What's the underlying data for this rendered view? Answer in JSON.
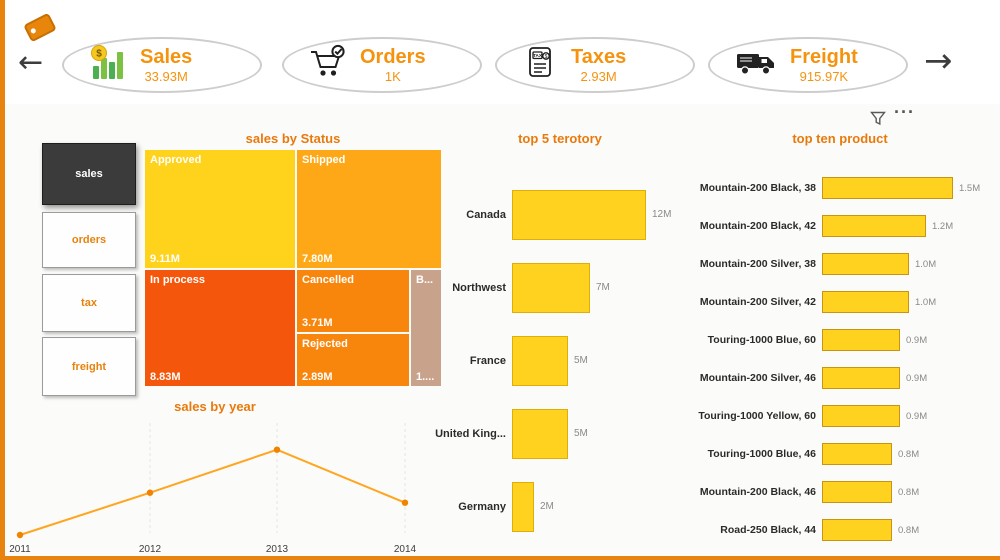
{
  "nav": {
    "back_arrow": "←",
    "forward_arrow": "→",
    "more_options": "···"
  },
  "colors": {
    "accent_orange": "#E8820C",
    "kpi_text": "#F5930F",
    "gold_bar": "#FFD21F",
    "line": "#FFA51F",
    "marker": "#F08300",
    "selected_button_bg": "#3B3B3B",
    "edge_strip": "#E8830F"
  },
  "kpis": [
    {
      "label": "Sales",
      "value": "33.93M",
      "icon": "bar-chart-dollar-icon"
    },
    {
      "label": "Orders",
      "value": "1K",
      "icon": "shopping-cart-icon"
    },
    {
      "label": "Taxes",
      "value": "2.93M",
      "icon": "tax-document-icon"
    },
    {
      "label": "Freight",
      "value": "915.97K",
      "icon": "delivery-truck-icon"
    }
  ],
  "sidebar": {
    "items": [
      {
        "label": "sales",
        "selected": true
      },
      {
        "label": "orders",
        "selected": false
      },
      {
        "label": "tax",
        "selected": false
      },
      {
        "label": "freight",
        "selected": false
      }
    ]
  },
  "chart_data": [
    {
      "type": "treemap",
      "title": "sales by Status",
      "items": [
        {
          "label": "Approved",
          "value_label": "9.11M",
          "value_millions": 9.11,
          "color": "#FFD21C"
        },
        {
          "label": "Shipped",
          "value_label": "7.80M",
          "value_millions": 7.8,
          "color": "#FFA817"
        },
        {
          "label": "In process",
          "value_label": "8.83M",
          "value_millions": 8.83,
          "color": "#F4570B"
        },
        {
          "label": "Cancelled",
          "value_label": "3.71M",
          "value_millions": 3.71,
          "color": "#F8860D"
        },
        {
          "label": "Rejected",
          "value_label": "2.89M",
          "value_millions": 2.89,
          "color": "#F8860D"
        },
        {
          "label": "B...",
          "value_label": "1....",
          "value_millions": 1.0,
          "color": "#C9A28B"
        }
      ]
    },
    {
      "type": "line",
      "title": "sales by year",
      "x": [
        "2011",
        "2012",
        "2013",
        "2014"
      ],
      "values_millions_estimated": [
        1.7,
        8.9,
        16.2,
        7.2
      ],
      "line_color": "#FFA51F",
      "marker_color": "#F08300",
      "grid": "vertical-dashed",
      "legend": "none"
    },
    {
      "type": "bar",
      "orientation": "horizontal",
      "title": "top 5 terotory",
      "categories": [
        "Canada",
        "Northwest",
        "France",
        "United King...",
        "Germany"
      ],
      "values_millions": [
        12,
        7,
        5,
        5,
        2
      ],
      "value_labels": [
        "12M",
        "7M",
        "5M",
        "5M",
        "2M"
      ],
      "bar_color": "#FFD21F",
      "xlim_millions": [
        0,
        13
      ]
    },
    {
      "type": "bar",
      "orientation": "horizontal",
      "title": "top ten product",
      "categories": [
        "Mountain-200 Black, 38",
        "Mountain-200 Black, 42",
        "Mountain-200 Silver, 38",
        "Mountain-200 Silver, 42",
        "Touring-1000 Blue, 60",
        "Mountain-200 Silver, 46",
        "Touring-1000 Yellow, 60",
        "Touring-1000 Blue, 46",
        "Mountain-200 Black, 46",
        "Road-250 Black, 44"
      ],
      "values_millions": [
        1.5,
        1.2,
        1.0,
        1.0,
        0.9,
        0.9,
        0.9,
        0.8,
        0.8,
        0.8
      ],
      "value_labels": [
        "1.5M",
        "1.2M",
        "1.0M",
        "1.0M",
        "0.9M",
        "0.9M",
        "0.9M",
        "0.8M",
        "0.8M",
        "0.8M"
      ],
      "bar_color": "#FFD21F",
      "xlim_millions": [
        0,
        1.6
      ]
    }
  ]
}
